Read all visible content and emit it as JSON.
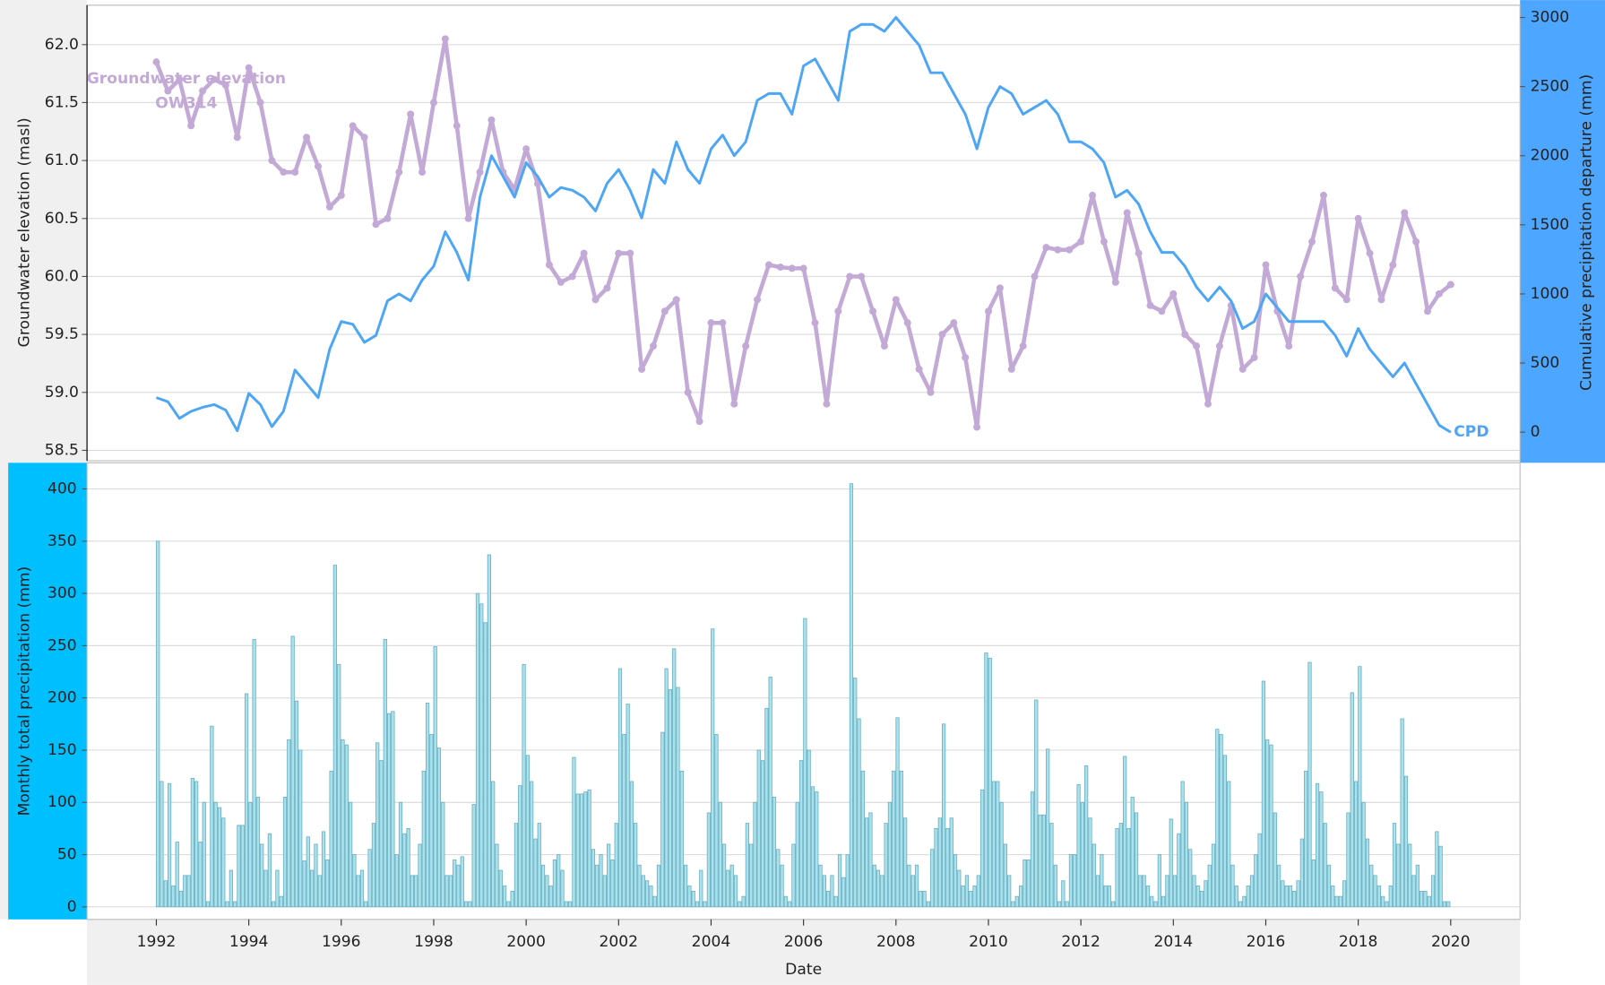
{
  "chart_data": [
    {
      "type": "line",
      "ylabel": "Groundwater elevation (masl)",
      "y2label": "Cumulative precipitation departure (mm)",
      "xlim": [
        1990.5,
        2021.5
      ],
      "ylim": [
        58.41,
        62.34
      ],
      "yticks": [
        58.5,
        {
          "value": 59,
          "label": "59.0"
        },
        59.5,
        {
          "value": 60,
          "label": "60.0"
        },
        60.5,
        {
          "value": 61,
          "label": "61.0"
        },
        61.5,
        {
          "value": 62,
          "label": "62.0"
        }
      ],
      "y2lim": [
        -207,
        3089
      ],
      "y2ticks": [
        0,
        500,
        1000,
        1500,
        2000,
        2500,
        3000
      ],
      "grid": true,
      "x": [
        1992,
        1992.25,
        1992.5,
        1992.75,
        1993,
        1993.25,
        1993.5,
        1993.75,
        1994,
        1994.25,
        1994.5,
        1994.75,
        1995,
        1995.25,
        1995.5,
        1995.75,
        1996,
        1996.25,
        1996.5,
        1996.75,
        1997,
        1997.25,
        1997.5,
        1997.75,
        1998,
        1998.25,
        1998.5,
        1998.75,
        1999,
        1999.25,
        1999.5,
        1999.75,
        2000,
        2000.25,
        2000.5,
        2000.75,
        2001,
        2001.25,
        2001.5,
        2001.75,
        2002,
        2002.25,
        2002.5,
        2002.75,
        2003,
        2003.25,
        2003.5,
        2003.75,
        2004,
        2004.25,
        2004.5,
        2004.75,
        2005,
        2005.25,
        2005.5,
        2005.75,
        2006,
        2006.25,
        2006.5,
        2006.75,
        2007,
        2007.25,
        2007.5,
        2007.75,
        2008,
        2008.25,
        2008.5,
        2008.75,
        2009,
        2009.25,
        2009.5,
        2009.75,
        2010,
        2010.25,
        2010.5,
        2010.75,
        2011,
        2011.25,
        2011.5,
        2011.75,
        2012,
        2012.25,
        2012.5,
        2012.75,
        2013,
        2013.25,
        2013.5,
        2013.75,
        2014,
        2014.25,
        2014.5,
        2014.75,
        2015,
        2015.25,
        2015.5,
        2015.75,
        2016,
        2016.25,
        2016.5,
        2016.75,
        2017,
        2017.25,
        2017.5,
        2017.75,
        2018,
        2018.25,
        2018.5,
        2018.75,
        2019,
        2019.25,
        2019.5,
        2019.75,
        2020
      ],
      "series": [
        {
          "name": "Groundwater elevation OW314",
          "color": "#c3a9d6",
          "markers": true,
          "values": [
            61.85,
            61.6,
            61.7,
            61.3,
            61.6,
            61.7,
            61.65,
            61.2,
            61.8,
            61.5,
            61.0,
            60.9,
            60.9,
            61.2,
            60.95,
            60.6,
            60.7,
            61.3,
            61.2,
            60.45,
            60.5,
            60.9,
            61.4,
            60.9,
            61.5,
            62.05,
            61.3,
            60.5,
            60.9,
            61.35,
            60.9,
            60.75,
            61.1,
            60.8,
            60.1,
            59.95,
            60.0,
            60.2,
            59.8,
            59.9,
            60.2,
            60.2,
            59.2,
            59.4,
            59.7,
            59.8,
            59.0,
            58.75,
            59.6,
            59.6,
            58.9,
            59.4,
            59.8,
            60.1,
            60.08,
            60.07,
            60.07,
            59.6,
            58.9,
            59.7,
            60.0,
            60.0,
            59.7,
            59.4,
            59.8,
            59.6,
            59.2,
            59.0,
            59.5,
            59.6,
            59.3,
            58.7,
            59.7,
            59.9,
            59.2,
            59.4,
            60.0,
            60.25,
            60.23,
            60.23,
            60.3,
            60.7,
            60.3,
            59.95,
            60.55,
            60.2,
            59.75,
            59.7,
            59.85,
            59.5,
            59.4,
            58.9,
            59.4,
            59.75,
            59.2,
            59.3,
            60.1,
            59.7,
            59.4,
            60.0,
            60.3,
            60.7,
            59.9,
            59.8,
            60.5,
            60.2,
            59.8,
            60.1,
            60.55,
            60.3,
            59.7,
            59.85,
            59.93
          ]
        },
        {
          "name": "CPD",
          "color": "#4da6f5",
          "axis": "y2",
          "values": [
            250,
            220,
            100,
            150,
            180,
            200,
            160,
            10,
            280,
            200,
            40,
            150,
            450,
            350,
            250,
            600,
            800,
            780,
            650,
            700,
            950,
            1000,
            950,
            1100,
            1200,
            1450,
            1300,
            1100,
            1700,
            2000,
            1850,
            1700,
            1950,
            1850,
            1700,
            1770,
            1750,
            1700,
            1600,
            1800,
            1900,
            1750,
            1550,
            1900,
            1800,
            2100,
            1900,
            1800,
            2050,
            2150,
            2000,
            2100,
            2400,
            2450,
            2450,
            2300,
            2650,
            2700,
            2550,
            2400,
            2900,
            2950,
            2950,
            2900,
            3000,
            2900,
            2800,
            2600,
            2600,
            2450,
            2300,
            2050,
            2350,
            2500,
            2450,
            2300,
            2350,
            2400,
            2300,
            2100,
            2100,
            2050,
            1950,
            1700,
            1750,
            1650,
            1450,
            1300,
            1300,
            1200,
            1050,
            950,
            1050,
            950,
            750,
            800,
            1000,
            900,
            800,
            800,
            800,
            800,
            700,
            550,
            750,
            600,
            500,
            400,
            500,
            350,
            200,
            50,
            0
          ]
        }
      ]
    },
    {
      "type": "bar",
      "ylabel": "Monthly total precipitation (mm)",
      "xlabel": "Date",
      "color": "#a8e2ef",
      "xlim": [
        1990.5,
        2021.5
      ],
      "xticks": [
        1992,
        1994,
        1996,
        1998,
        2000,
        2002,
        2004,
        2006,
        2008,
        2010,
        2012,
        2014,
        2016,
        2018,
        2020
      ],
      "ylim": [
        -12,
        425
      ],
      "yticks": [
        0,
        50,
        100,
        150,
        200,
        250,
        300,
        350,
        400
      ],
      "grid": true,
      "x": [
        1992,
        1992.083,
        1992.167,
        1992.25,
        1992.333,
        1992.417,
        1992.5,
        1992.583,
        1992.667,
        1992.75,
        1992.833,
        1992.917,
        1993,
        1993.083,
        1993.167,
        1993.25,
        1993.333,
        1993.417,
        1993.5,
        1993.583,
        1993.667,
        1993.75,
        1993.833,
        1993.917,
        1994,
        1994.083,
        1994.167,
        1994.25,
        1994.333,
        1994.417,
        1994.5,
        1994.583,
        1994.667,
        1994.75,
        1994.833,
        1994.917,
        1995,
        1995.083,
        1995.167,
        1995.25,
        1995.333,
        1995.417,
        1995.5,
        1995.583,
        1995.667,
        1995.75,
        1995.833,
        1995.917,
        1996,
        1996.083,
        1996.167,
        1996.25,
        1996.333,
        1996.417,
        1996.5,
        1996.583,
        1996.667,
        1996.75,
        1996.833,
        1996.917,
        1997,
        1997.083,
        1997.167,
        1997.25,
        1997.333,
        1997.417,
        1997.5,
        1997.583,
        1997.667,
        1997.75,
        1997.833,
        1997.917,
        1998,
        1998.083,
        1998.167,
        1998.25,
        1998.333,
        1998.417,
        1998.5,
        1998.583,
        1998.667,
        1998.75,
        1998.833,
        1998.917,
        1999,
        1999.083,
        1999.167,
        1999.25,
        1999.333,
        1999.417,
        1999.5,
        1999.583,
        1999.667,
        1999.75,
        1999.833,
        1999.917,
        2000,
        2000.083,
        2000.167,
        2000.25,
        2000.333,
        2000.417,
        2000.5,
        2000.583,
        2000.667,
        2000.75,
        2000.833,
        2000.917,
        2001,
        2001.083,
        2001.167,
        2001.25,
        2001.333,
        2001.417,
        2001.5,
        2001.583,
        2001.667,
        2001.75,
        2001.833,
        2001.917,
        2002,
        2002.083,
        2002.167,
        2002.25,
        2002.333,
        2002.417,
        2002.5,
        2002.583,
        2002.667,
        2002.75,
        2002.833,
        2002.917,
        2003,
        2003.083,
        2003.167,
        2003.25,
        2003.333,
        2003.417,
        2003.5,
        2003.583,
        2003.667,
        2003.75,
        2003.833,
        2003.917,
        2004,
        2004.083,
        2004.167,
        2004.25,
        2004.333,
        2004.417,
        2004.5,
        2004.583,
        2004.667,
        2004.75,
        2004.833,
        2004.917,
        2005,
        2005.083,
        2005.167,
        2005.25,
        2005.333,
        2005.417,
        2005.5,
        2005.583,
        2005.667,
        2005.75,
        2005.833,
        2005.917,
        2006,
        2006.083,
        2006.167,
        2006.25,
        2006.333,
        2006.417,
        2006.5,
        2006.583,
        2006.667,
        2006.75,
        2006.833,
        2006.917,
        2007,
        2007.083,
        2007.167,
        2007.25,
        2007.333,
        2007.417,
        2007.5,
        2007.583,
        2007.667,
        2007.75,
        2007.833,
        2007.917,
        2008,
        2008.083,
        2008.167,
        2008.25,
        2008.333,
        2008.417,
        2008.5,
        2008.583,
        2008.667,
        2008.75,
        2008.833,
        2008.917,
        2009,
        2009.083,
        2009.167,
        2009.25,
        2009.333,
        2009.417,
        2009.5,
        2009.583,
        2009.667,
        2009.75,
        2009.833,
        2009.917,
        2010,
        2010.083,
        2010.167,
        2010.25,
        2010.333,
        2010.417,
        2010.5,
        2010.583,
        2010.667,
        2010.75,
        2010.833,
        2010.917,
        2011,
        2011.083,
        2011.167,
        2011.25,
        2011.333,
        2011.417,
        2011.5,
        2011.583,
        2011.667,
        2011.75,
        2011.833,
        2011.917,
        2012,
        2012.083,
        2012.167,
        2012.25,
        2012.333,
        2012.417,
        2012.5,
        2012.583,
        2012.667,
        2012.75,
        2012.833,
        2012.917,
        2013,
        2013.083,
        2013.167,
        2013.25,
        2013.333,
        2013.417,
        2013.5,
        2013.583,
        2013.667,
        2013.75,
        2013.833,
        2013.917,
        2014,
        2014.083,
        2014.167,
        2014.25,
        2014.333,
        2014.417,
        2014.5,
        2014.583,
        2014.667,
        2014.75,
        2014.833,
        2014.917,
        2015,
        2015.083,
        2015.167,
        2015.25,
        2015.333,
        2015.417,
        2015.5,
        2015.583,
        2015.667,
        2015.75,
        2015.833,
        2015.917,
        2016,
        2016.083,
        2016.167,
        2016.25,
        2016.333,
        2016.417,
        2016.5,
        2016.583,
        2016.667,
        2016.75,
        2016.833,
        2016.917,
        2017,
        2017.083,
        2017.167,
        2017.25,
        2017.333,
        2017.417,
        2017.5,
        2017.583,
        2017.667,
        2017.75,
        2017.833,
        2017.917,
        2018,
        2018.083,
        2018.167,
        2018.25,
        2018.333,
        2018.417,
        2018.5,
        2018.583,
        2018.667,
        2018.75,
        2018.833,
        2018.917,
        2019,
        2019.083,
        2019.167,
        2019.25,
        2019.333,
        2019.417,
        2019.5,
        2019.583,
        2019.667,
        2019.75,
        2019.833,
        2019.917
      ],
      "values": [
        350,
        120,
        25,
        118,
        20,
        62,
        15,
        30,
        30,
        123,
        120,
        62,
        100,
        5,
        173,
        100,
        95,
        85,
        5,
        35,
        5,
        78,
        78,
        204,
        100,
        256,
        105,
        60,
        35,
        70,
        5,
        35,
        10,
        105,
        160,
        259,
        197,
        150,
        44,
        67,
        35,
        60,
        30,
        72,
        45,
        130,
        327,
        232,
        160,
        155,
        100,
        50,
        30,
        35,
        5,
        55,
        80,
        157,
        140,
        256,
        185,
        187,
        50,
        100,
        70,
        75,
        30,
        30,
        60,
        130,
        195,
        165,
        249,
        152,
        100,
        30,
        30,
        45,
        40,
        48,
        5,
        5,
        98,
        300,
        290,
        272,
        337,
        120,
        60,
        35,
        20,
        5,
        15,
        80,
        116,
        232,
        145,
        120,
        65,
        80,
        40,
        30,
        20,
        45,
        50,
        35,
        5,
        5,
        143,
        108,
        108,
        110,
        112,
        55,
        40,
        50,
        30,
        60,
        45,
        80,
        228,
        165,
        194,
        120,
        80,
        40,
        30,
        25,
        20,
        10,
        40,
        167,
        228,
        208,
        247,
        210,
        130,
        40,
        20,
        15,
        5,
        35,
        5,
        90,
        266,
        165,
        100,
        60,
        35,
        40,
        30,
        5,
        10,
        80,
        60,
        100,
        150,
        140,
        190,
        220,
        105,
        55,
        40,
        10,
        5,
        60,
        100,
        140,
        276,
        150,
        115,
        110,
        40,
        30,
        15,
        30,
        10,
        50,
        28,
        50,
        405,
        219,
        180,
        130,
        85,
        90,
        40,
        35,
        30,
        80,
        100,
        130,
        181,
        130,
        85,
        40,
        30,
        40,
        15,
        15,
        5,
        55,
        75,
        85,
        175,
        75,
        85,
        50,
        35,
        20,
        30,
        15,
        20,
        30,
        112,
        243,
        238,
        120,
        120,
        100,
        60,
        30,
        5,
        10,
        20,
        45,
        45,
        110,
        198,
        88,
        88,
        151,
        80,
        40,
        5,
        25,
        5,
        50,
        50,
        117,
        100,
        135,
        85,
        60,
        30,
        50,
        20,
        20,
        5,
        75,
        80,
        144,
        75,
        105,
        90,
        30,
        30,
        20,
        10,
        5,
        50,
        10,
        30,
        84,
        30,
        70,
        120,
        100,
        55,
        30,
        20,
        15,
        25,
        40,
        60,
        170,
        165,
        145,
        120,
        40,
        20,
        5,
        10,
        20,
        30,
        50,
        70,
        216,
        160,
        155,
        90,
        40,
        25,
        20,
        20,
        15,
        25,
        65,
        130,
        234,
        45,
        118,
        110,
        80,
        40,
        20,
        10,
        10,
        25,
        90,
        205,
        120,
        230,
        100,
        65,
        40,
        30,
        20,
        10,
        5,
        20,
        80,
        60,
        180,
        125,
        60,
        30,
        40,
        15,
        15,
        10,
        30,
        72,
        58,
        5,
        5
      ]
    }
  ]
}
